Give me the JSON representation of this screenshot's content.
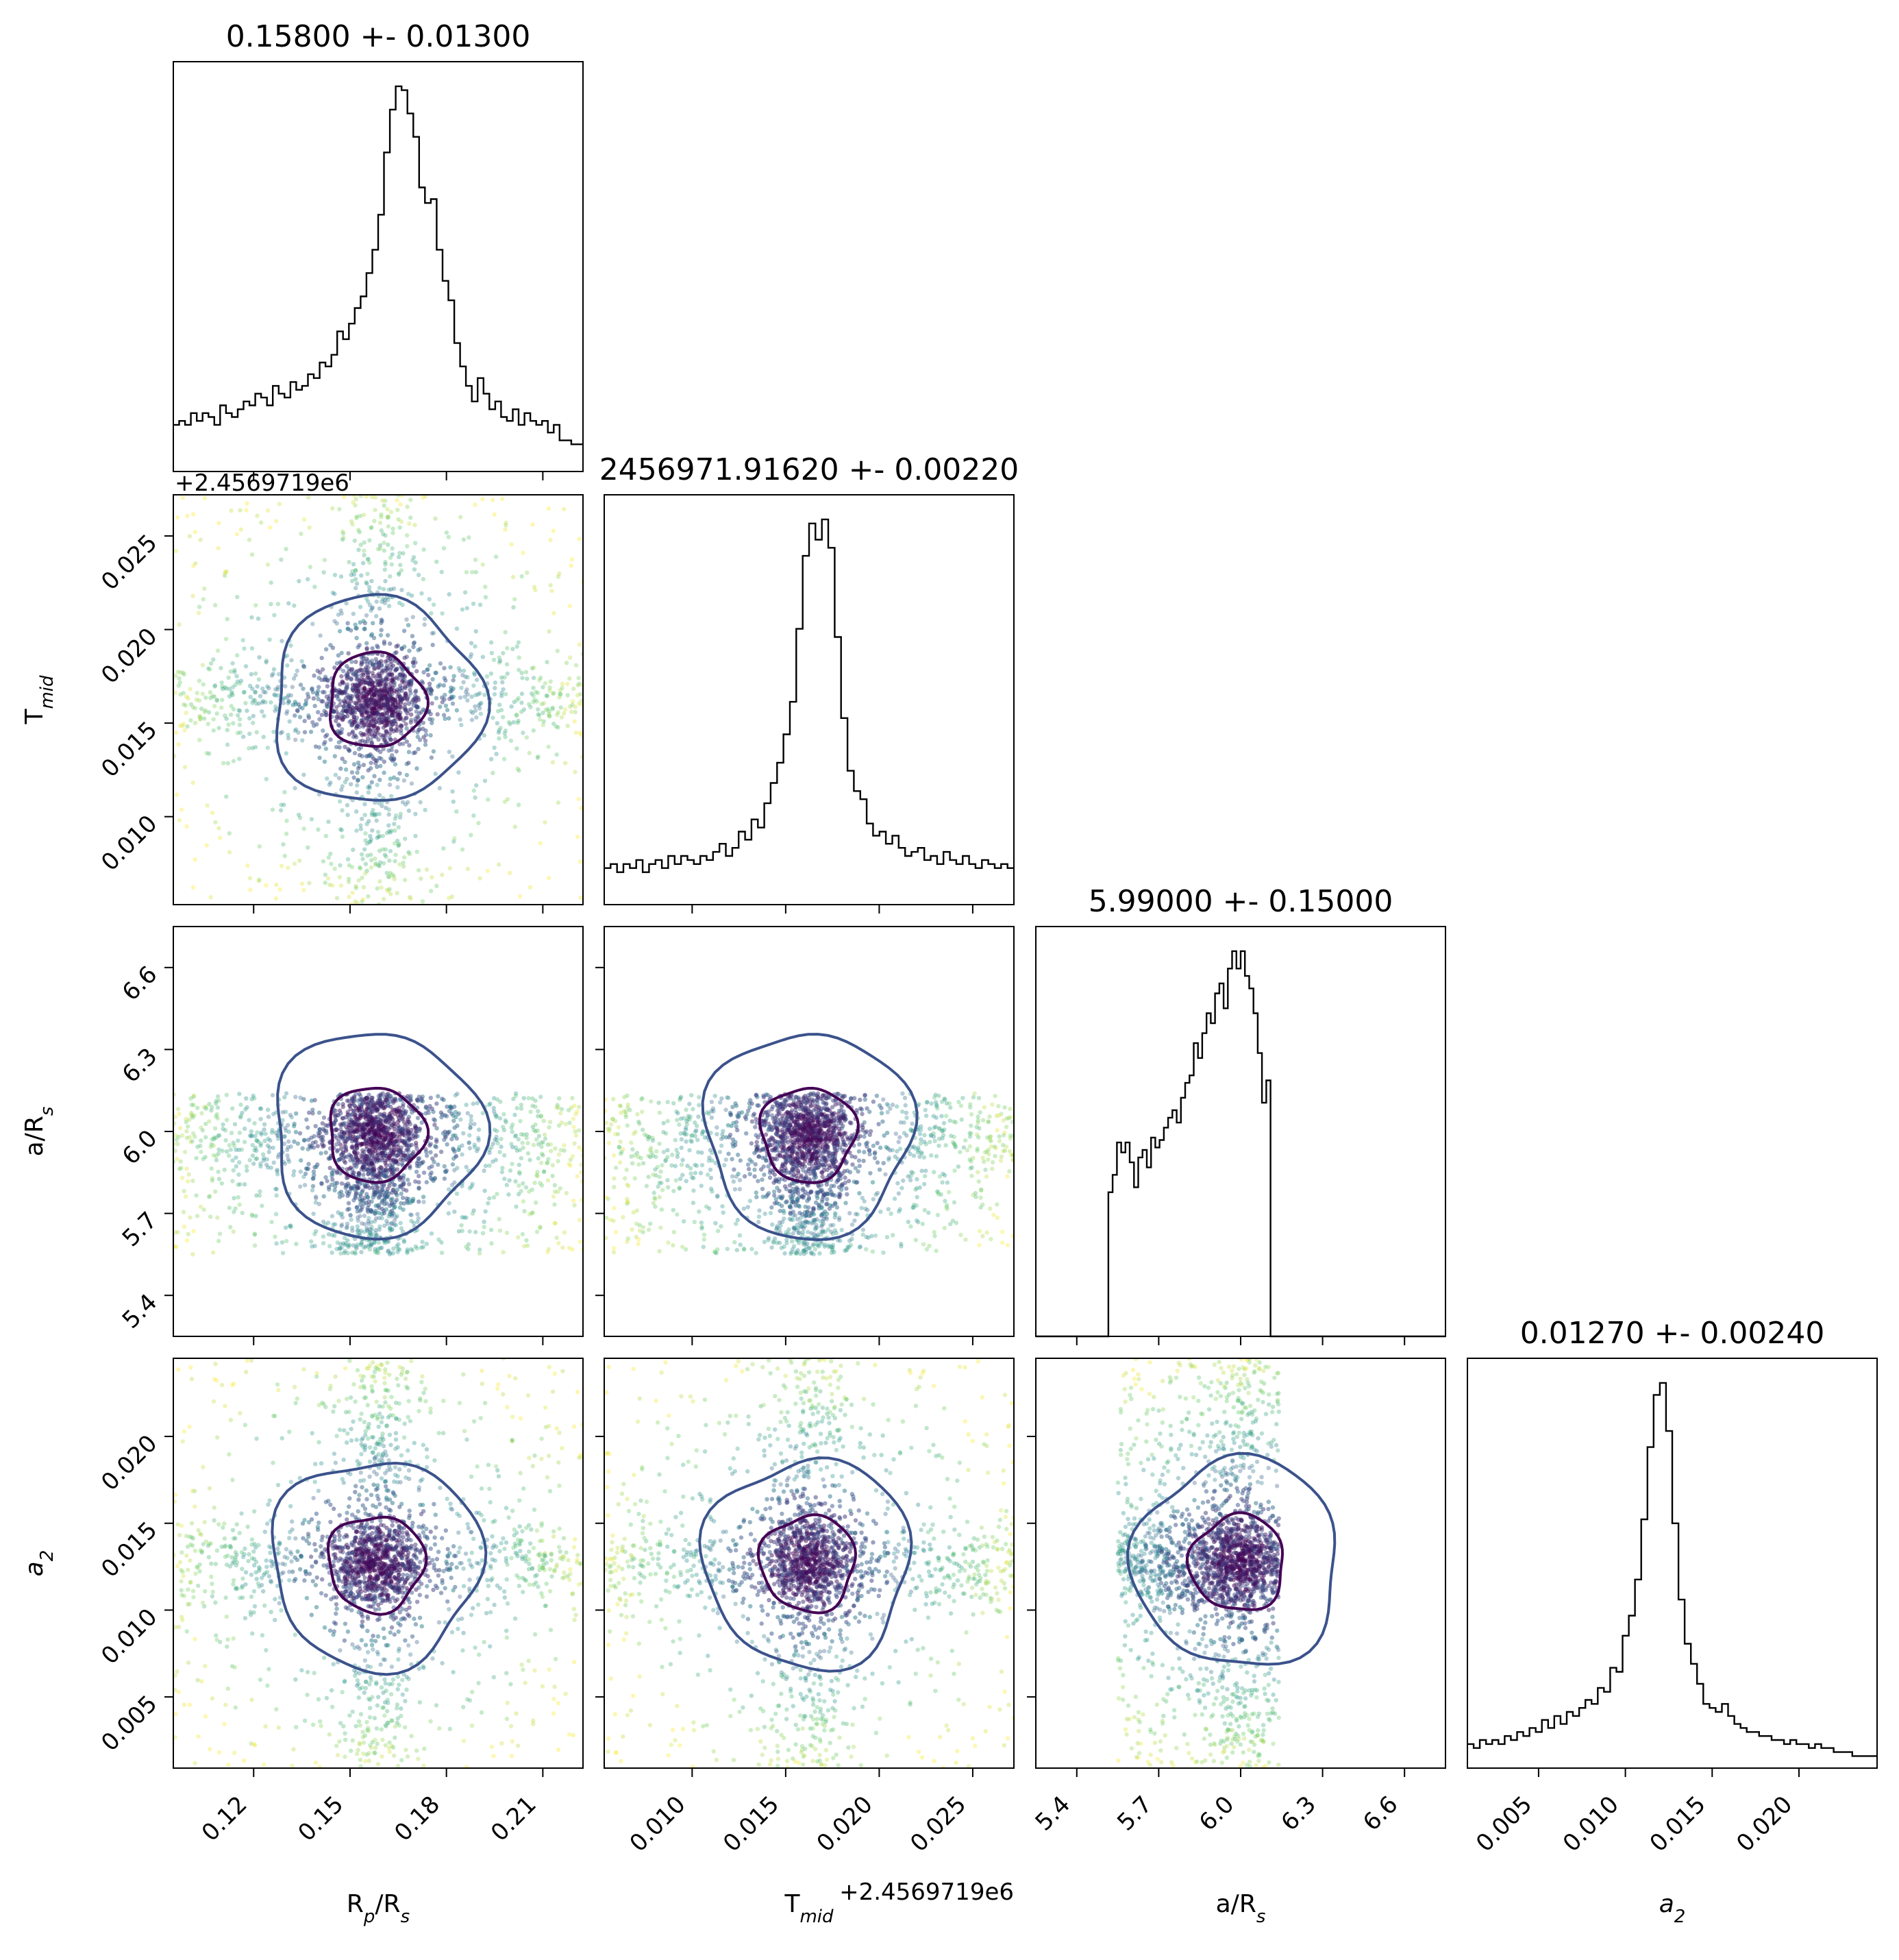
{
  "chart_data": {
    "type": "corner",
    "parameters": [
      {
        "id": "rp_rs",
        "label_main": "R",
        "label_sub": "p",
        "label_tail": "/R",
        "label_tail_sub": "s",
        "title": "0.15800 +- 0.01300",
        "mean": 0.158,
        "std": 0.013,
        "range": [
          0.095,
          0.2225
        ],
        "ticks": [
          0.12,
          0.15,
          0.18,
          0.21
        ],
        "tick_labels": [
          "0.12",
          "0.15",
          "0.18",
          "0.21"
        ],
        "offset": "",
        "shape": "peaked",
        "bounds": null
      },
      {
        "id": "t_mid",
        "label_main": "T",
        "label_sub": "mid",
        "label_tail": "",
        "label_tail_sub": "",
        "title": "2456971.91620 +- 0.00220",
        "mean": 0.0162,
        "std": 0.0022,
        "range": [
          0.0053,
          0.0272
        ],
        "ticks": [
          0.01,
          0.015,
          0.02,
          0.025
        ],
        "tick_labels": [
          "0.010",
          "0.015",
          "0.020",
          "0.025"
        ],
        "offset": "+2.4569719e6",
        "shape": "peaked",
        "bounds": null
      },
      {
        "id": "a_rs",
        "label_main": "a/R",
        "label_sub": "s",
        "label_tail": "",
        "label_tail_sub": "",
        "title": "5.99000 +- 0.15000",
        "mean": 5.99,
        "std": 0.15,
        "range": [
          5.25,
          6.75
        ],
        "ticks": [
          5.4,
          5.7,
          6.0,
          6.3,
          6.6
        ],
        "tick_labels": [
          "5.4",
          "5.7",
          "6.0",
          "6.3",
          "6.6"
        ],
        "offset": "",
        "shape": "truncated",
        "bounds": [
          5.55,
          6.14
        ]
      },
      {
        "id": "a2",
        "label_main": "a",
        "label_sub": "2",
        "label_tail": "",
        "label_tail_sub": "",
        "label_italic": true,
        "title": "0.01270 +- 0.00240",
        "mean": 0.0127,
        "std": 0.0024,
        "range": [
          0.0009,
          0.0245
        ],
        "ticks": [
          0.005,
          0.01,
          0.015,
          0.02
        ],
        "tick_labels": [
          "0.005",
          "0.010",
          "0.015",
          "0.020"
        ],
        "offset": "",
        "shape": "peaked",
        "bounds": null
      }
    ],
    "histograms": {
      "rp_rs": [
        0.12,
        0.13,
        0.12,
        0.15,
        0.13,
        0.15,
        0.14,
        0.12,
        0.17,
        0.15,
        0.14,
        0.16,
        0.18,
        0.17,
        0.2,
        0.19,
        0.17,
        0.22,
        0.2,
        0.19,
        0.23,
        0.21,
        0.22,
        0.25,
        0.24,
        0.28,
        0.27,
        0.3,
        0.36,
        0.34,
        0.38,
        0.42,
        0.45,
        0.51,
        0.57,
        0.66,
        0.82,
        0.93,
        0.99,
        0.98,
        0.92,
        0.86,
        0.73,
        0.69,
        0.7,
        0.57,
        0.49,
        0.44,
        0.33,
        0.27,
        0.22,
        0.18,
        0.24,
        0.2,
        0.16,
        0.18,
        0.14,
        0.13,
        0.16,
        0.12,
        0.15,
        0.13,
        0.12,
        0.13,
        0.1,
        0.12,
        0.08,
        0.08,
        0.07,
        0.07
      ],
      "t_mid": [
        0.09,
        0.1,
        0.08,
        0.1,
        0.09,
        0.11,
        0.08,
        0.1,
        0.11,
        0.09,
        0.12,
        0.1,
        0.12,
        0.11,
        0.1,
        0.12,
        0.11,
        0.13,
        0.15,
        0.12,
        0.14,
        0.18,
        0.16,
        0.21,
        0.19,
        0.25,
        0.3,
        0.35,
        0.42,
        0.5,
        0.68,
        0.86,
        0.94,
        0.9,
        0.95,
        0.88,
        0.66,
        0.46,
        0.33,
        0.28,
        0.26,
        0.2,
        0.17,
        0.18,
        0.15,
        0.17,
        0.14,
        0.12,
        0.13,
        0.14,
        0.11,
        0.12,
        0.1,
        0.13,
        0.11,
        0.1,
        0.12,
        0.1,
        0.09,
        0.11,
        0.1,
        0.09,
        0.1,
        0.09
      ],
      "a_rs": [
        0,
        0,
        0,
        0,
        0,
        0,
        0,
        0,
        0,
        0,
        0,
        0,
        0,
        0,
        0,
        0,
        0,
        0.58,
        0.65,
        0.78,
        0.74,
        0.78,
        0.7,
        0.6,
        0.72,
        0.75,
        0.68,
        0.8,
        0.76,
        0.79,
        0.84,
        0.88,
        0.91,
        0.86,
        0.96,
        1.02,
        1.05,
        1.18,
        1.12,
        1.22,
        1.3,
        1.26,
        1.38,
        1.42,
        1.32,
        1.48,
        1.55,
        1.48,
        1.55,
        1.45,
        1.4,
        1.3,
        1.14,
        0.94,
        1.03,
        0,
        0,
        0,
        0,
        0,
        0,
        0,
        0,
        0,
        0,
        0,
        0,
        0,
        0,
        0,
        0,
        0,
        0,
        0,
        0,
        0,
        0,
        0,
        0,
        0,
        0,
        0,
        0,
        0,
        0,
        0,
        0,
        0,
        0,
        0,
        0,
        0,
        0,
        0,
        0,
        0
      ],
      "a2": [
        0.06,
        0.05,
        0.07,
        0.06,
        0.07,
        0.06,
        0.08,
        0.07,
        0.09,
        0.08,
        0.1,
        0.09,
        0.12,
        0.1,
        0.13,
        0.11,
        0.14,
        0.13,
        0.15,
        0.17,
        0.16,
        0.2,
        0.19,
        0.25,
        0.24,
        0.33,
        0.38,
        0.47,
        0.62,
        0.8,
        0.93,
        0.96,
        0.84,
        0.61,
        0.42,
        0.31,
        0.26,
        0.21,
        0.16,
        0.15,
        0.14,
        0.16,
        0.13,
        0.11,
        0.1,
        0.09,
        0.09,
        0.08,
        0.08,
        0.07,
        0.07,
        0.06,
        0.07,
        0.06,
        0.06,
        0.05,
        0.06,
        0.05,
        0.05,
        0.04,
        0.04,
        0.04,
        0.03,
        0.03,
        0.03,
        0.03
      ]
    },
    "scatter_colormap": "viridis",
    "contour_colors": [
      "#440154",
      "#3b528b",
      "#fde725"
    ],
    "hist_color": "#000000"
  }
}
